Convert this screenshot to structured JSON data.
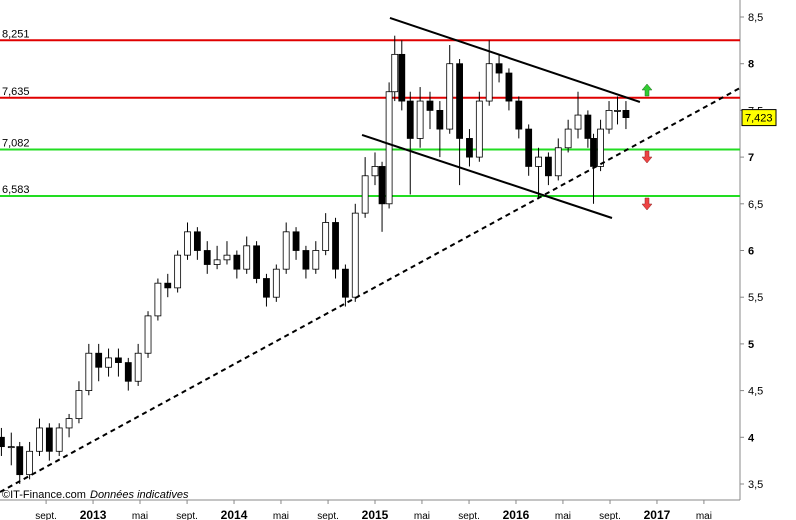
{
  "chart_data": {
    "type": "candlestick",
    "xlim": [
      2012.34,
      2017.589
    ],
    "ylim": [
      3.35,
      8.65
    ],
    "xticks": [
      {
        "value": 2012.667,
        "label": "sept."
      },
      2013,
      {
        "value": 2013.333,
        "label": "mai"
      },
      {
        "value": 2013.667,
        "label": "sept."
      },
      2014,
      {
        "value": 2014.333,
        "label": "mai"
      },
      {
        "value": 2014.667,
        "label": "sept."
      },
      2015,
      {
        "value": 2015.333,
        "label": "mai"
      },
      {
        "value": 2015.667,
        "label": "sept."
      },
      2016,
      {
        "value": 2016.333,
        "label": "mai"
      },
      {
        "value": 2016.667,
        "label": "sept."
      },
      2017,
      {
        "value": 2017.333,
        "label": "mai"
      }
    ],
    "yticks": [
      {
        "value": 3.5,
        "label": "3,5"
      },
      4,
      {
        "value": 4.5,
        "label": "4,5"
      },
      5,
      {
        "value": 5.5,
        "label": "5,5"
      },
      6,
      {
        "value": 6.5,
        "label": "6,5"
      },
      7,
      {
        "value": 7.5,
        "label": "7,5"
      },
      8,
      {
        "value": 8.5,
        "label": "8,5"
      }
    ],
    "x": [
      2012.35,
      2012.42,
      2012.48,
      2012.55,
      2012.62,
      2012.69,
      2012.76,
      2012.83,
      2012.9,
      2012.97,
      2013.04,
      2013.11,
      2013.18,
      2013.25,
      2013.32,
      2013.39,
      2013.46,
      2013.53,
      2013.6,
      2013.67,
      2013.74,
      2013.81,
      2013.88,
      2013.95,
      2014.02,
      2014.09,
      2014.16,
      2014.23,
      2014.3,
      2014.37,
      2014.44,
      2014.51,
      2014.58,
      2014.65,
      2014.72,
      2014.79,
      2014.86,
      2014.93,
      2015.0,
      2015.05,
      2015.1,
      2015.14,
      2015.19,
      2015.25,
      2015.32,
      2015.39,
      2015.46,
      2015.53,
      2015.6,
      2015.67,
      2015.74,
      2015.81,
      2015.88,
      2015.95,
      2016.02,
      2016.09,
      2016.16,
      2016.23,
      2016.3,
      2016.37,
      2016.44,
      2016.51,
      2016.55,
      2016.6,
      2016.66,
      2016.72,
      2016.78
    ],
    "open": [
      4.0,
      3.9,
      3.9,
      3.6,
      3.85,
      4.1,
      3.85,
      4.1,
      4.2,
      4.5,
      4.9,
      4.75,
      4.85,
      4.8,
      4.6,
      4.9,
      5.3,
      5.65,
      5.6,
      5.95,
      6.2,
      6.0,
      5.85,
      5.9,
      5.95,
      5.8,
      6.05,
      5.7,
      5.5,
      5.8,
      6.2,
      6.0,
      5.8,
      6.0,
      6.3,
      5.8,
      5.5,
      6.4,
      6.8,
      6.9,
      6.5,
      7.7,
      8.1,
      7.6,
      7.2,
      7.6,
      7.5,
      7.3,
      8.0,
      7.2,
      7.0,
      7.6,
      8.0,
      7.9,
      7.6,
      7.3,
      6.9,
      7.0,
      6.8,
      7.1,
      7.3,
      7.45,
      7.2,
      6.9,
      7.3,
      7.5,
      7.5
    ],
    "high": [
      4.1,
      4.05,
      3.95,
      3.95,
      4.2,
      4.15,
      4.15,
      4.25,
      4.6,
      5.0,
      5.0,
      4.95,
      4.95,
      4.85,
      5.0,
      5.35,
      5.7,
      5.75,
      6.0,
      6.3,
      6.25,
      6.1,
      6.05,
      6.1,
      6.0,
      6.15,
      6.1,
      5.75,
      5.85,
      6.3,
      6.25,
      6.05,
      6.1,
      6.4,
      6.35,
      5.85,
      6.5,
      7.0,
      7.05,
      6.95,
      7.8,
      8.3,
      8.25,
      7.7,
      7.75,
      7.7,
      7.6,
      8.2,
      8.05,
      7.3,
      7.7,
      8.25,
      8.1,
      7.95,
      7.65,
      7.35,
      7.1,
      7.05,
      7.2,
      7.4,
      7.7,
      7.5,
      7.25,
      7.4,
      7.6,
      7.65,
      7.6
    ],
    "low": [
      3.8,
      3.7,
      3.5,
      3.55,
      3.8,
      3.75,
      3.8,
      4.0,
      4.15,
      4.45,
      4.6,
      4.65,
      4.65,
      4.5,
      4.55,
      4.85,
      5.25,
      5.5,
      5.55,
      5.9,
      5.9,
      5.75,
      5.8,
      5.85,
      5.7,
      5.75,
      5.65,
      5.4,
      5.45,
      5.75,
      5.9,
      5.7,
      5.75,
      5.95,
      5.7,
      5.4,
      5.45,
      6.35,
      6.7,
      6.2,
      6.45,
      7.6,
      7.5,
      6.6,
      7.1,
      7.3,
      7.0,
      7.25,
      6.7,
      6.9,
      6.95,
      7.55,
      7.8,
      7.5,
      7.2,
      6.8,
      6.55,
      6.7,
      6.75,
      7.05,
      7.2,
      7.1,
      6.5,
      6.85,
      7.25,
      7.35,
      7.3
    ],
    "close": [
      3.9,
      3.9,
      3.6,
      3.85,
      4.1,
      3.85,
      4.1,
      4.2,
      4.5,
      4.9,
      4.75,
      4.85,
      4.8,
      4.6,
      4.9,
      5.3,
      5.65,
      5.6,
      5.95,
      6.2,
      6.0,
      5.85,
      5.9,
      5.95,
      5.8,
      6.05,
      5.7,
      5.5,
      5.8,
      6.2,
      6.0,
      5.8,
      6.0,
      6.3,
      5.8,
      5.5,
      6.4,
      6.8,
      6.9,
      6.5,
      7.7,
      8.1,
      7.6,
      7.2,
      7.6,
      7.5,
      7.3,
      8.0,
      7.2,
      7.0,
      7.6,
      8.0,
      7.9,
      7.6,
      7.3,
      6.9,
      7.0,
      6.8,
      7.1,
      7.3,
      7.45,
      7.2,
      6.9,
      7.3,
      7.5,
      7.5,
      7.423
    ],
    "levels": [
      {
        "value": 8.251,
        "label": "8,251",
        "color": "#e00000"
      },
      {
        "value": 7.635,
        "label": "7,635",
        "color": "#e00000"
      },
      {
        "value": 7.082,
        "label": "7,082",
        "color": "#22dd22"
      },
      {
        "value": 6.583,
        "label": "6,583",
        "color": "#22dd22"
      }
    ],
    "trendlines": [
      {
        "x": [
          2012.34,
          2017.589
        ],
        "y": [
          3.414,
          7.74
        ],
        "style": "dashed"
      },
      {
        "x": [
          2015.106,
          2016.879
        ],
        "y": [
          8.49,
          7.59
        ],
        "style": "solid"
      },
      {
        "x": [
          2014.908,
          2016.681
        ],
        "y": [
          7.237,
          6.348
        ],
        "style": "solid"
      }
    ],
    "last": {
      "value": 7.423,
      "label": "7,423"
    },
    "watermark": "©IT-Finance.com",
    "note": "Données indicatives"
  }
}
